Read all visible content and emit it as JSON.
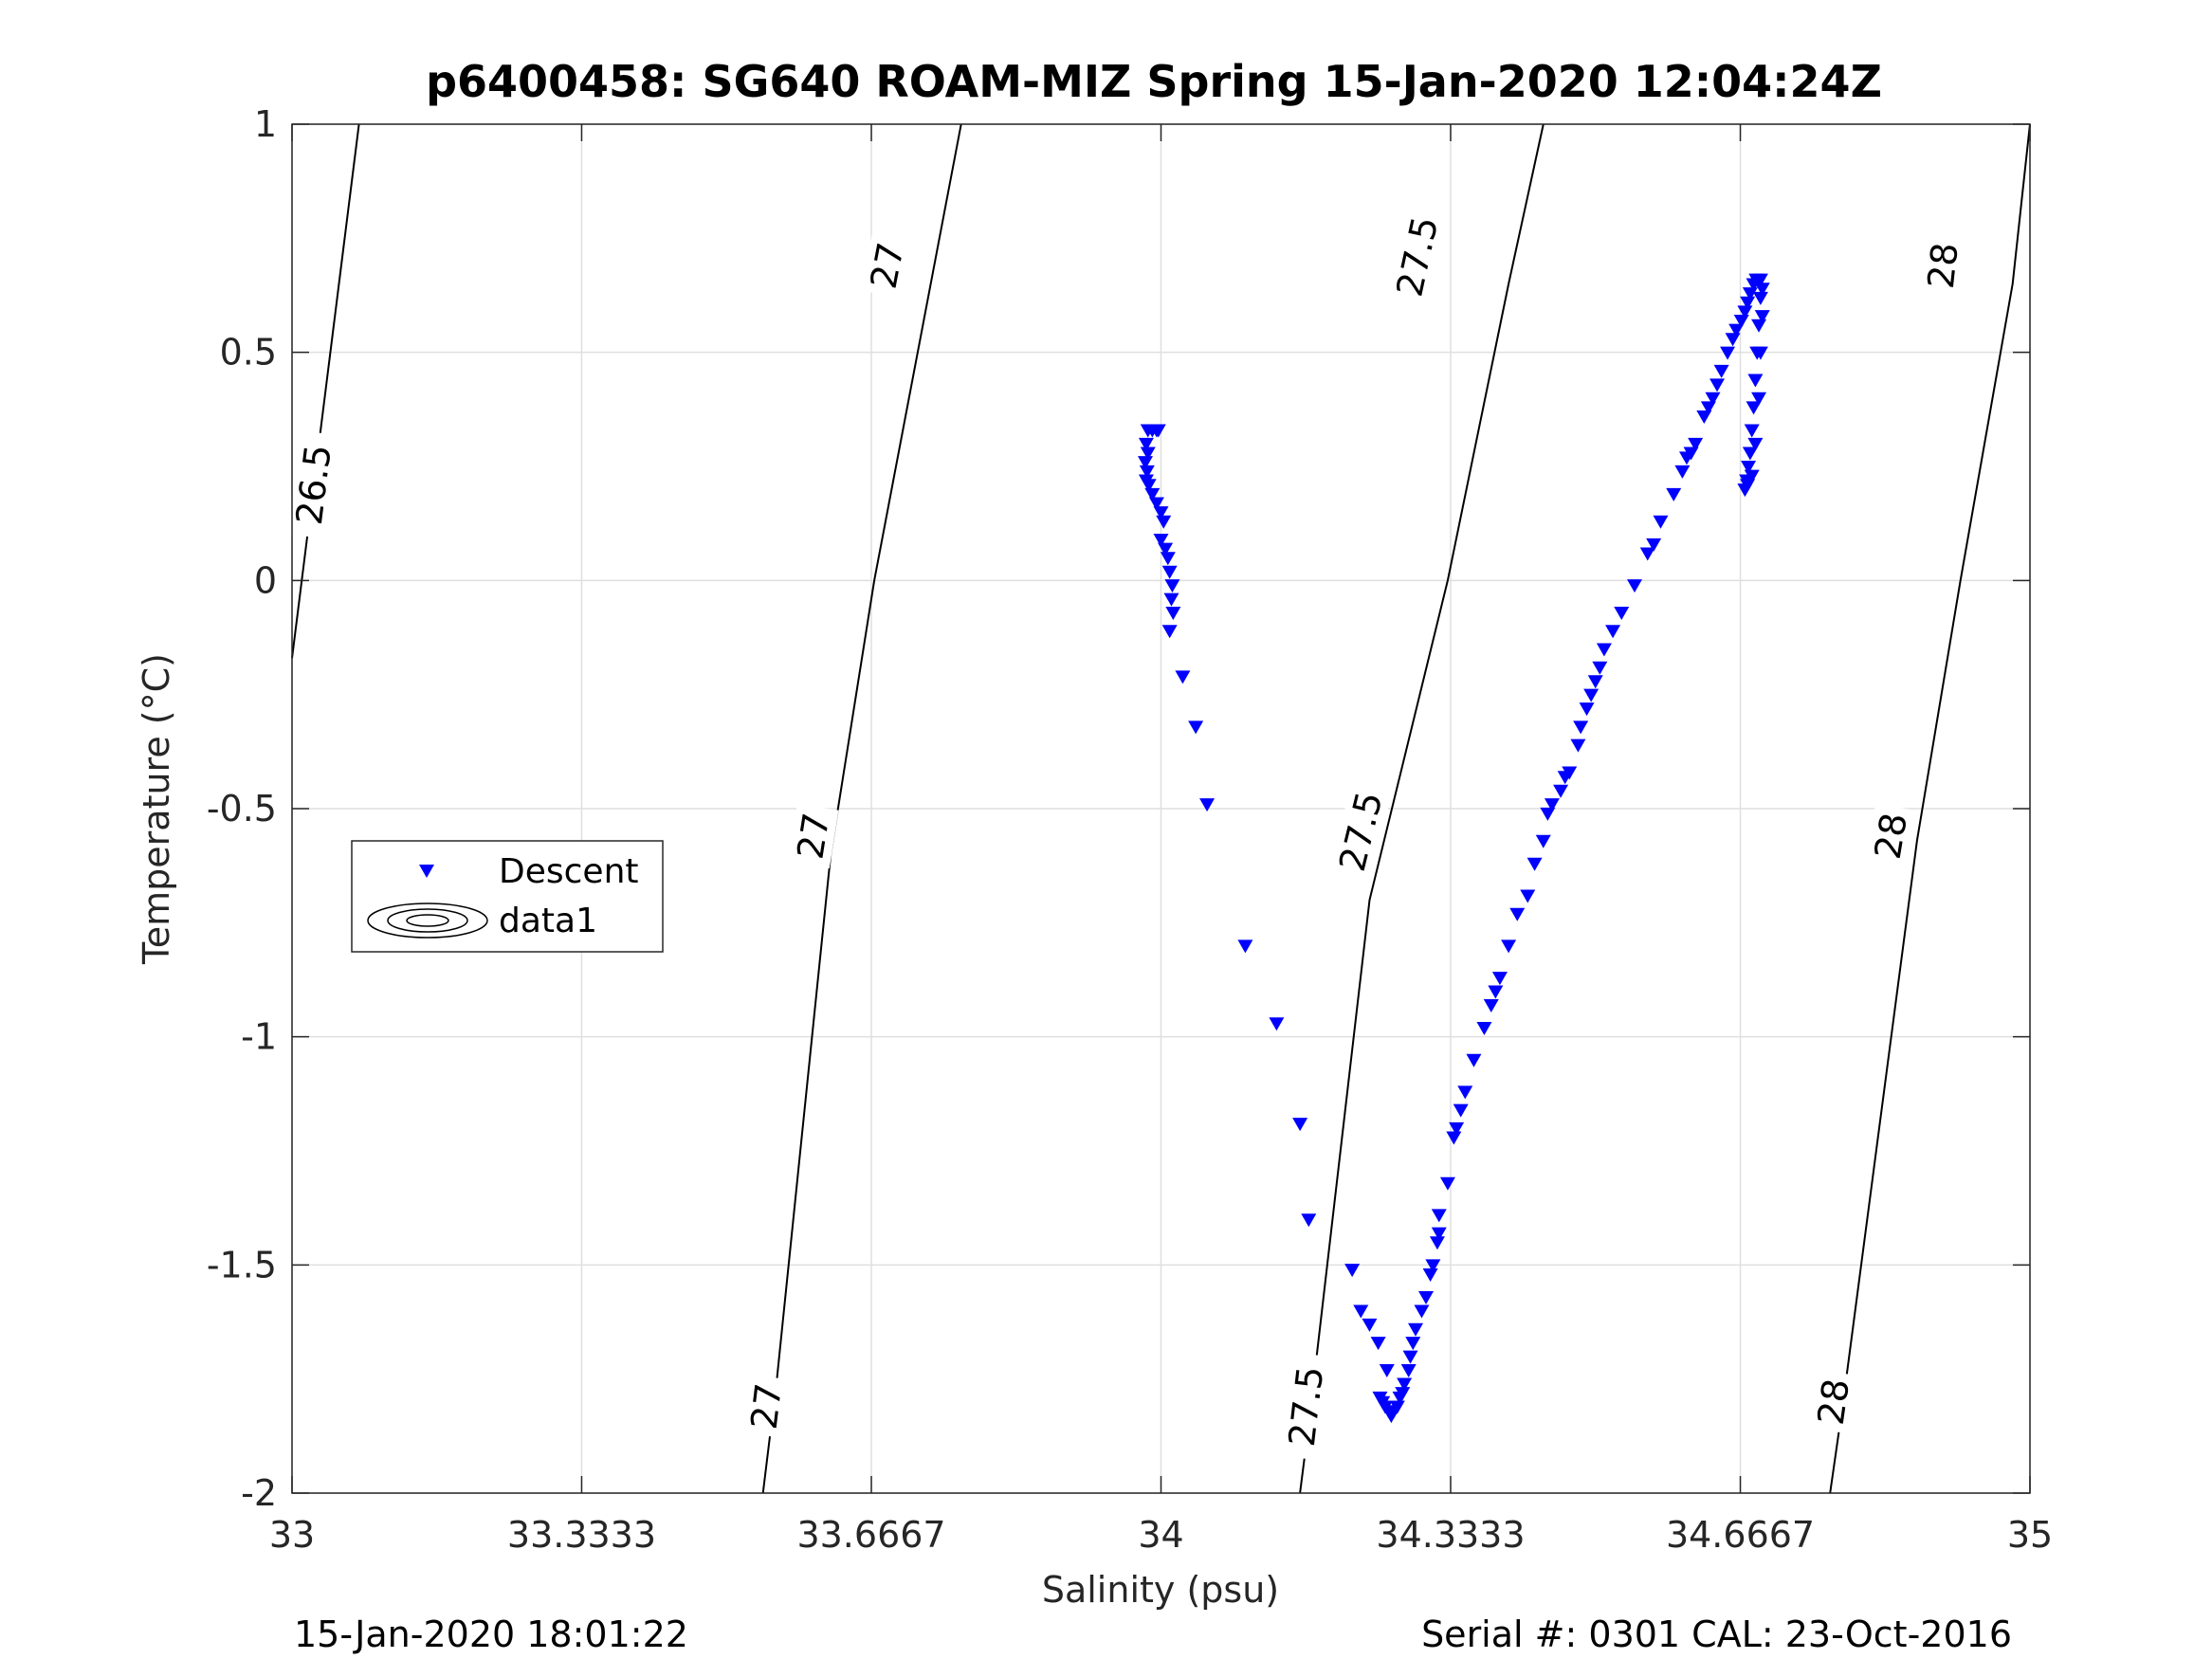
{
  "chart_data": {
    "type": "scatter",
    "title": "p6400458: SG640 ROAM-MIZ Spring 15-Jan-2020 12:04:24Z",
    "xlabel": "Salinity (psu)",
    "ylabel": "Temperature (°C)",
    "xlim": [
      33,
      35
    ],
    "ylim": [
      -2,
      1
    ],
    "x_ticks": [
      33,
      33.3333,
      33.6667,
      34,
      34.3333,
      34.6667,
      35
    ],
    "x_tick_labels": [
      "33",
      "33.3333",
      "33.6667",
      "34",
      "34.3333",
      "34.6667",
      "35"
    ],
    "y_ticks": [
      1,
      0.5,
      0,
      -0.5,
      -1,
      -1.5,
      -2
    ],
    "y_tick_labels": [
      "1",
      "0.5",
      "0",
      "-0.5",
      "-1",
      "-1.5",
      "-2"
    ],
    "grid": true,
    "legend_position": "left-middle",
    "legend": [
      {
        "label": "Descent",
        "marker": "triangle-down",
        "color": "#0000ff"
      },
      {
        "label": "data1",
        "marker": "contour-ellipses",
        "color": "#000000"
      }
    ],
    "footer_left": "15-Jan-2020 18:01:22",
    "footer_right": "Serial #: 0301  CAL: 23-Oct-2016",
    "contours": [
      {
        "level": 26.5,
        "label": "26.5",
        "points": [
          [
            33.0,
            -0.17
          ],
          [
            33.077,
            1.0
          ]
        ],
        "labels": [
          {
            "x": 33.025,
            "y": 0.21,
            "text": "26.5"
          }
        ]
      },
      {
        "level": 27,
        "label": "27",
        "points": [
          [
            33.542,
            -2.0
          ],
          [
            33.558,
            -1.75
          ],
          [
            33.62,
            -0.6
          ],
          [
            33.67,
            0.0
          ],
          [
            33.74,
            0.7
          ],
          [
            33.77,
            1.0
          ]
        ],
        "labels": [
          {
            "x": 33.546,
            "y": -1.81,
            "text": "27"
          },
          {
            "x": 33.6,
            "y": -0.56,
            "text": "27"
          },
          {
            "x": 33.685,
            "y": 0.69,
            "text": "27"
          }
        ]
      },
      {
        "level": 27.5,
        "label": "27.5",
        "points": [
          [
            34.16,
            -2.0
          ],
          [
            34.17,
            -1.85
          ],
          [
            34.24,
            -0.7
          ],
          [
            34.33,
            0.0
          ],
          [
            34.4,
            0.65
          ],
          [
            34.44,
            1.0
          ]
        ],
        "labels": [
          {
            "x": 34.167,
            "y": -1.81,
            "text": "27.5"
          },
          {
            "x": 34.23,
            "y": -0.55,
            "text": "27.5"
          },
          {
            "x": 34.295,
            "y": 0.71,
            "text": "27.5"
          }
        ]
      },
      {
        "level": 28,
        "label": "28",
        "points": [
          [
            34.77,
            -2.0
          ],
          [
            34.785,
            -1.8
          ],
          [
            34.87,
            -0.57
          ],
          [
            34.92,
            0.0
          ],
          [
            34.98,
            0.65
          ],
          [
            35.0,
            1.0
          ]
        ],
        "labels": [
          {
            "x": 34.774,
            "y": -1.8,
            "text": "28"
          },
          {
            "x": 34.84,
            "y": -0.56,
            "text": "28"
          },
          {
            "x": 34.9,
            "y": 0.69,
            "text": "28"
          }
        ]
      }
    ],
    "series": [
      {
        "name": "Descent",
        "marker": "triangle-down",
        "color": "#0000ff",
        "points": [
          [
            33.985,
            0.33
          ],
          [
            33.99,
            0.33
          ],
          [
            33.995,
            0.33
          ],
          [
            33.997,
            0.33
          ],
          [
            33.983,
            0.3
          ],
          [
            33.985,
            0.28
          ],
          [
            33.982,
            0.26
          ],
          [
            33.984,
            0.24
          ],
          [
            33.983,
            0.22
          ],
          [
            33.986,
            0.21
          ],
          [
            33.99,
            0.19
          ],
          [
            33.995,
            0.17
          ],
          [
            34.0,
            0.15
          ],
          [
            34.003,
            0.13
          ],
          [
            34.0,
            0.09
          ],
          [
            34.005,
            0.07
          ],
          [
            34.008,
            0.05
          ],
          [
            34.01,
            0.02
          ],
          [
            34.013,
            -0.01
          ],
          [
            34.012,
            -0.04
          ],
          [
            34.014,
            -0.07
          ],
          [
            34.01,
            -0.11
          ],
          [
            34.025,
            -0.21
          ],
          [
            34.04,
            -0.32
          ],
          [
            34.053,
            -0.49
          ],
          [
            34.097,
            -0.8
          ],
          [
            34.133,
            -0.97
          ],
          [
            34.16,
            -1.19
          ],
          [
            34.17,
            -1.4
          ],
          [
            34.22,
            -1.51
          ],
          [
            34.23,
            -1.6
          ],
          [
            34.24,
            -1.63
          ],
          [
            34.25,
            -1.67
          ],
          [
            34.26,
            -1.73
          ],
          [
            34.252,
            -1.79
          ],
          [
            34.255,
            -1.8
          ],
          [
            34.258,
            -1.81
          ],
          [
            34.262,
            -1.82
          ],
          [
            34.265,
            -1.83
          ],
          [
            34.268,
            -1.82
          ],
          [
            34.272,
            -1.81
          ],
          [
            34.275,
            -1.79
          ],
          [
            34.278,
            -1.78
          ],
          [
            34.28,
            -1.76
          ],
          [
            34.285,
            -1.73
          ],
          [
            34.287,
            -1.7
          ],
          [
            34.29,
            -1.67
          ],
          [
            34.293,
            -1.64
          ],
          [
            34.3,
            -1.6
          ],
          [
            34.305,
            -1.57
          ],
          [
            34.31,
            -1.52
          ],
          [
            34.313,
            -1.5
          ],
          [
            34.318,
            -1.45
          ],
          [
            34.32,
            -1.43
          ],
          [
            34.32,
            -1.39
          ],
          [
            34.33,
            -1.32
          ],
          [
            34.337,
            -1.22
          ],
          [
            34.34,
            -1.2
          ],
          [
            34.345,
            -1.16
          ],
          [
            34.35,
            -1.12
          ],
          [
            34.36,
            -1.05
          ],
          [
            34.372,
            -0.98
          ],
          [
            34.38,
            -0.93
          ],
          [
            34.385,
            -0.9
          ],
          [
            34.39,
            -0.87
          ],
          [
            34.4,
            -0.8
          ],
          [
            34.41,
            -0.73
          ],
          [
            34.422,
            -0.69
          ],
          [
            34.43,
            -0.62
          ],
          [
            34.44,
            -0.57
          ],
          [
            34.445,
            -0.51
          ],
          [
            34.45,
            -0.49
          ],
          [
            34.46,
            -0.46
          ],
          [
            34.465,
            -0.43
          ],
          [
            34.47,
            -0.42
          ],
          [
            34.48,
            -0.36
          ],
          [
            34.483,
            -0.32
          ],
          [
            34.49,
            -0.28
          ],
          [
            34.495,
            -0.25
          ],
          [
            34.5,
            -0.22
          ],
          [
            34.505,
            -0.19
          ],
          [
            34.51,
            -0.15
          ],
          [
            34.52,
            -0.11
          ],
          [
            34.53,
            -0.07
          ],
          [
            34.545,
            -0.01
          ],
          [
            34.56,
            0.06
          ],
          [
            34.567,
            0.08
          ],
          [
            34.575,
            0.13
          ],
          [
            34.59,
            0.19
          ],
          [
            34.6,
            0.24
          ],
          [
            34.605,
            0.27
          ],
          [
            34.61,
            0.28
          ],
          [
            34.615,
            0.3
          ],
          [
            34.625,
            0.36
          ],
          [
            34.63,
            0.38
          ],
          [
            34.635,
            0.4
          ],
          [
            34.64,
            0.43
          ],
          [
            34.645,
            0.46
          ],
          [
            34.652,
            0.5
          ],
          [
            34.658,
            0.53
          ],
          [
            34.662,
            0.55
          ],
          [
            34.668,
            0.57
          ],
          [
            34.672,
            0.59
          ],
          [
            34.675,
            0.61
          ],
          [
            34.678,
            0.63
          ],
          [
            34.682,
            0.65
          ],
          [
            34.685,
            0.66
          ],
          [
            34.69,
            0.66
          ],
          [
            34.69,
            0.62
          ],
          [
            34.688,
            0.56
          ],
          [
            34.686,
            0.5
          ],
          [
            34.684,
            0.44
          ],
          [
            34.682,
            0.38
          ],
          [
            34.68,
            0.33
          ],
          [
            34.678,
            0.28
          ],
          [
            34.676,
            0.25
          ],
          [
            34.674,
            0.22
          ],
          [
            34.672,
            0.2
          ],
          [
            34.675,
            0.21
          ],
          [
            34.68,
            0.23
          ],
          [
            34.684,
            0.3
          ],
          [
            34.688,
            0.4
          ],
          [
            34.69,
            0.5
          ],
          [
            34.692,
            0.58
          ],
          [
            34.692,
            0.64
          ]
        ]
      }
    ]
  }
}
